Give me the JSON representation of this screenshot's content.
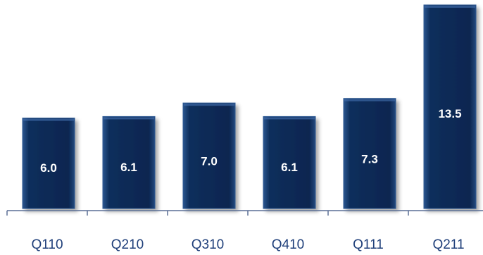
{
  "chart_data": {
    "type": "bar",
    "title": "",
    "xlabel": "",
    "ylabel": "",
    "categories": [
      "Q110",
      "Q210",
      "Q310",
      "Q410",
      "Q111",
      "Q211"
    ],
    "values": [
      6.0,
      6.1,
      7.0,
      6.1,
      7.3,
      13.5
    ],
    "value_labels": [
      "6.0",
      "6.1",
      "7.0",
      "6.1",
      "7.3",
      "13.5"
    ],
    "ylim": [
      0,
      13.5
    ],
    "grid": false,
    "legend": "none",
    "colors": {
      "bar": "#0d2b55",
      "bar_edge": "#2d5a94",
      "axis": "#5a6f96",
      "text": "#1f3f7a"
    }
  }
}
